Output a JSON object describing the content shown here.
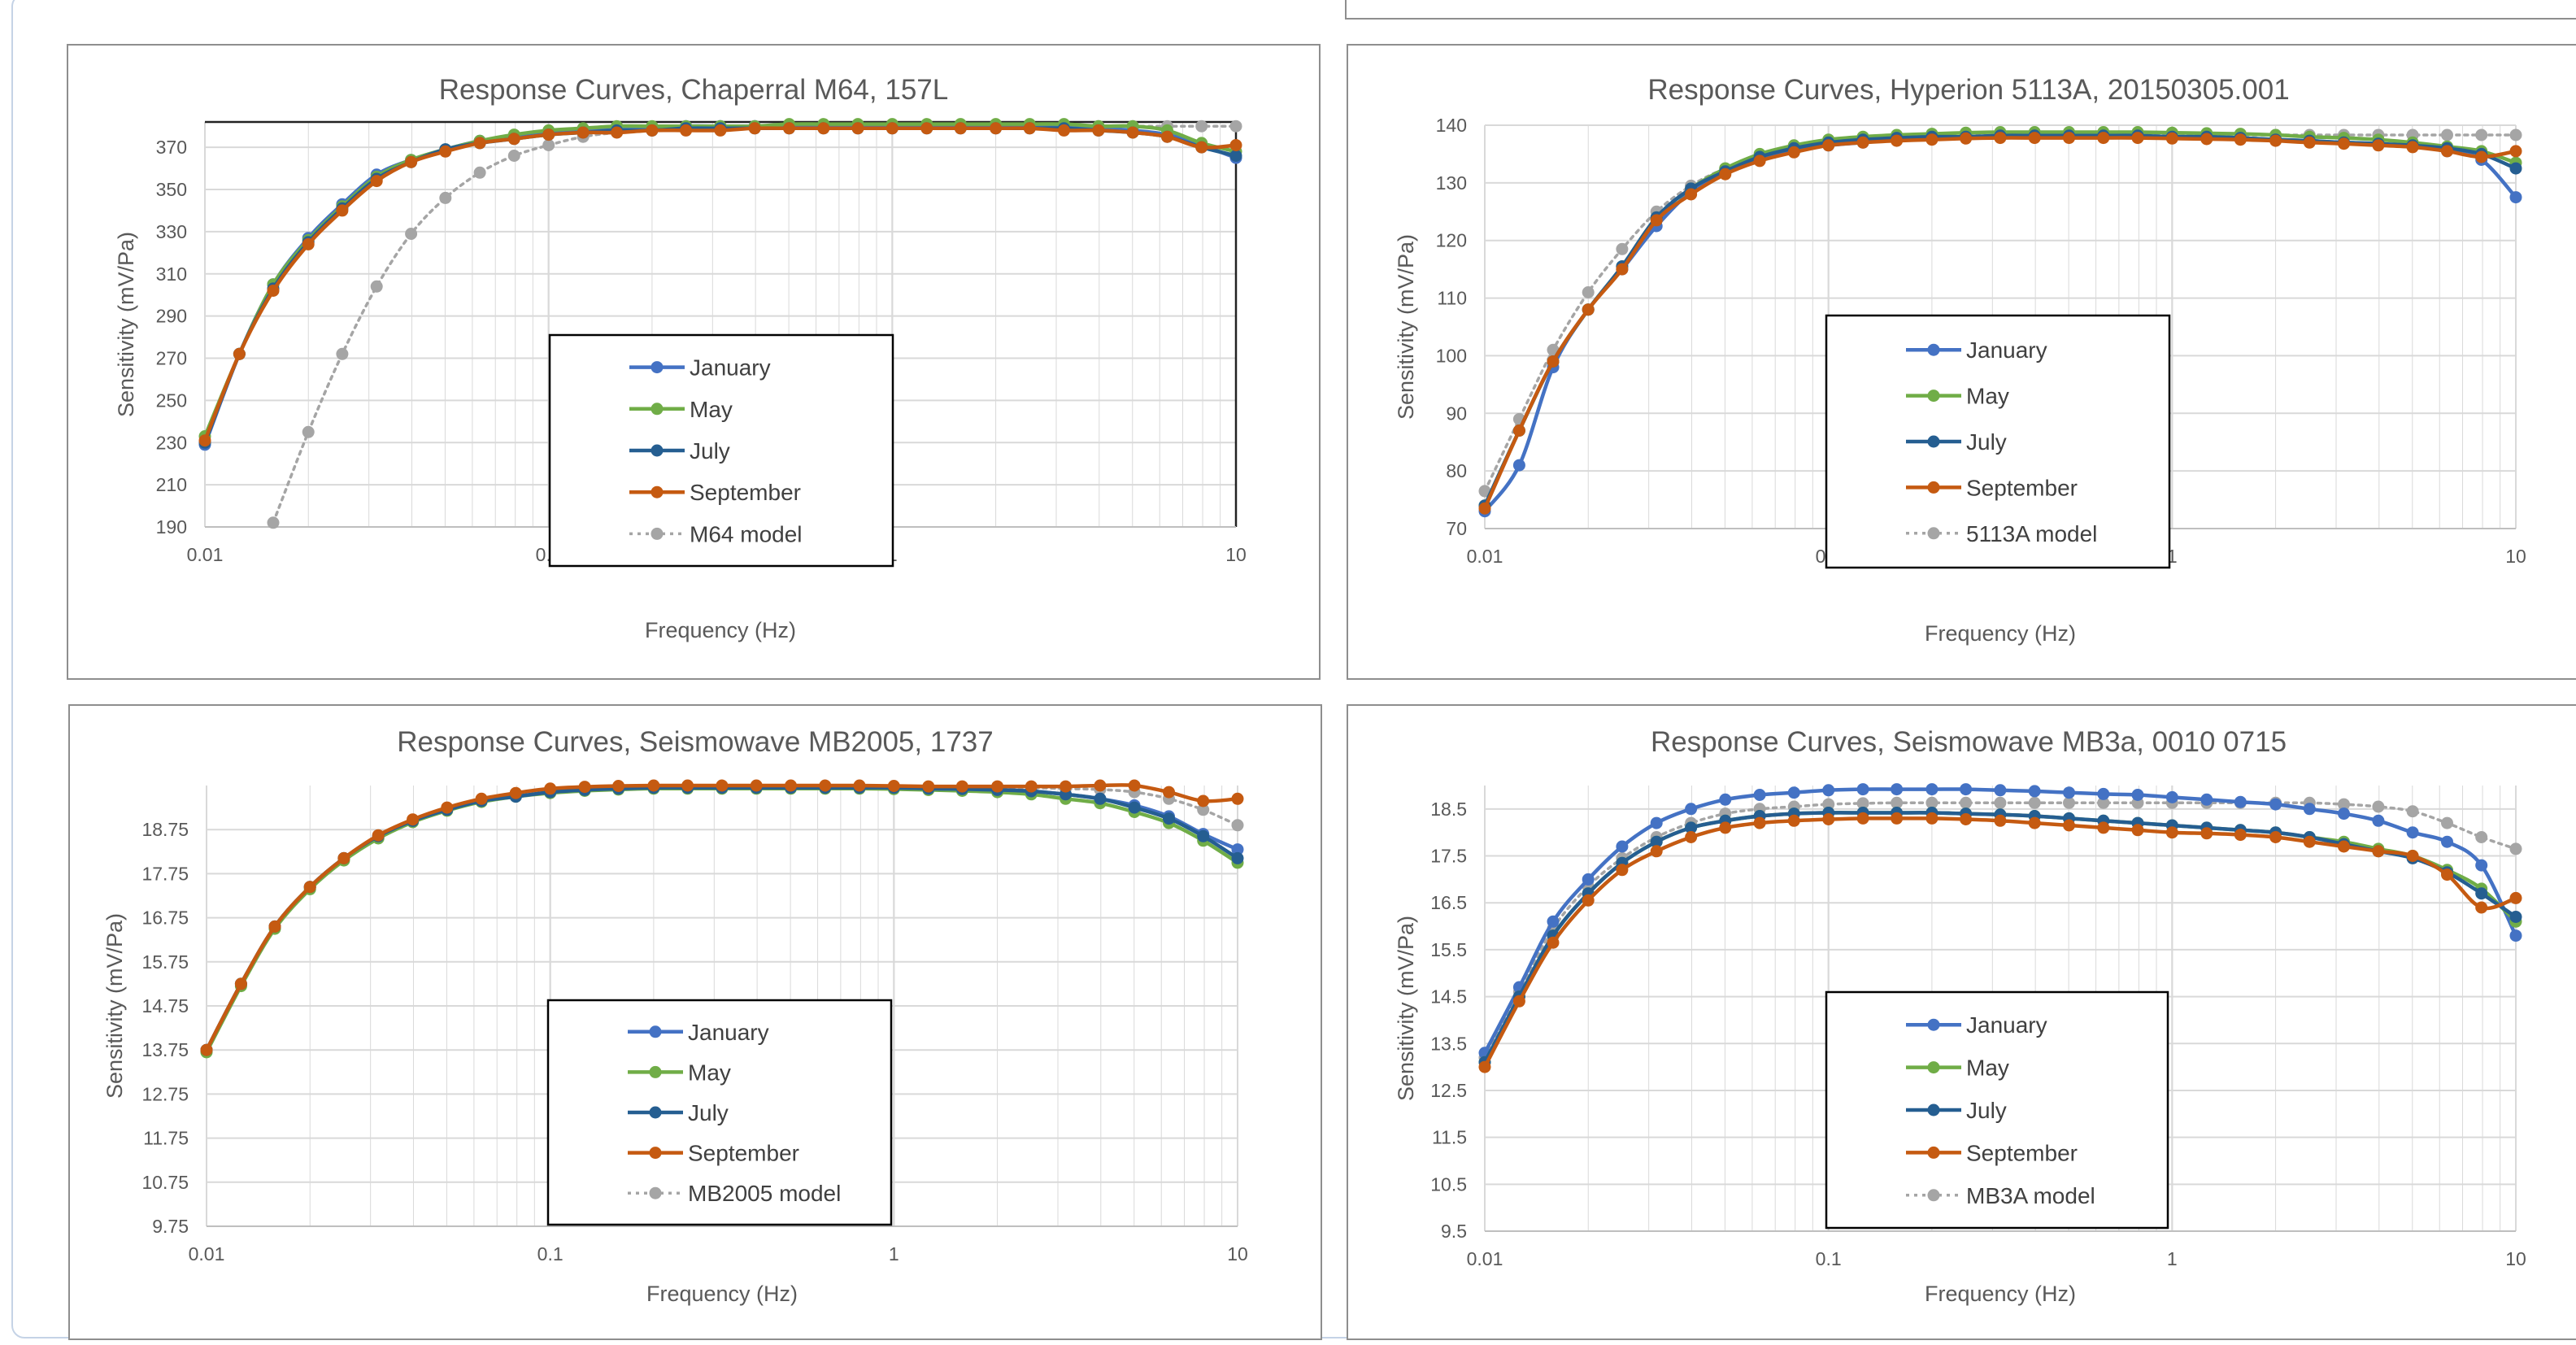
{
  "chart_data": [
    {
      "type": "line",
      "title": "Response Curves, Chaperral M64, 157L",
      "xlabel": "Frequency (Hz)",
      "ylabel": "Sensitivity (mV/Pa)",
      "x_scale": "log",
      "xlim": [
        0.01,
        10
      ],
      "ylim": [
        190,
        382
      ],
      "xticks": [
        0.01,
        0.1,
        1,
        10
      ],
      "xtick_labels": [
        "0.01",
        "0.1",
        "1",
        "10"
      ],
      "yticks": [
        190,
        210,
        230,
        250,
        270,
        290,
        310,
        330,
        350,
        370
      ],
      "ytick_labels": [
        "190",
        "210",
        "230",
        "250",
        "270",
        "290",
        "310",
        "330",
        "350",
        "370"
      ],
      "grid": true,
      "legend": "center",
      "x": [
        0.01,
        0.0126,
        0.0158,
        0.02,
        0.0251,
        0.0316,
        0.0398,
        0.0501,
        0.0631,
        0.0794,
        0.1,
        0.126,
        0.158,
        0.2,
        0.251,
        0.316,
        0.398,
        0.501,
        0.631,
        0.794,
        1,
        1.26,
        1.58,
        2,
        2.51,
        3.16,
        3.98,
        5.01,
        6.31,
        7.94,
        10
      ],
      "series": [
        {
          "name": "January",
          "values": [
            229,
            272,
            305,
            327,
            343,
            357,
            364,
            369,
            373,
            375,
            377,
            378,
            379,
            379,
            380,
            380,
            380,
            380,
            380,
            380,
            380,
            380,
            380,
            380,
            380,
            380,
            379,
            378,
            376,
            371,
            365
          ]
        },
        {
          "name": "May",
          "values": [
            233,
            272,
            305,
            326,
            342,
            356,
            364,
            369,
            373,
            376,
            378,
            379,
            380,
            380,
            380,
            380,
            380,
            381,
            381,
            381,
            381,
            381,
            381,
            381,
            381,
            381,
            380,
            380,
            378,
            372,
            368
          ]
        },
        {
          "name": "July",
          "values": [
            230,
            272,
            303,
            325,
            341,
            355,
            363,
            369,
            372,
            374,
            376,
            377,
            378,
            378,
            379,
            379,
            379,
            379,
            379,
            379,
            379,
            379,
            379,
            379,
            379,
            379,
            378,
            377,
            375,
            370,
            366
          ]
        },
        {
          "name": "September",
          "values": [
            231,
            272,
            302,
            324,
            340,
            354,
            363,
            368,
            372,
            374,
            376,
            377,
            377,
            378,
            378,
            378,
            379,
            379,
            379,
            379,
            379,
            379,
            379,
            379,
            379,
            378,
            378,
            377,
            375,
            370,
            371
          ]
        },
        {
          "name": "M64 model",
          "values": [
            null,
            null,
            192,
            235,
            272,
            304,
            329,
            346,
            358,
            366,
            371,
            375,
            377,
            378,
            379,
            380,
            380,
            380,
            380,
            380,
            380,
            380,
            380,
            380,
            380,
            380,
            380,
            380,
            380,
            380,
            380
          ]
        }
      ]
    },
    {
      "type": "line",
      "title": "Response Curves, Hyperion 5113A, 20150305.001",
      "xlabel": "Frequency (Hz)",
      "ylabel": "Sensitivity (mV/Pa)",
      "x_scale": "log",
      "xlim": [
        0.01,
        10
      ],
      "ylim": [
        70,
        140
      ],
      "xticks": [
        0.01,
        0.1,
        1,
        10
      ],
      "xtick_labels": [
        "0.01",
        "0.1",
        "1",
        "10"
      ],
      "yticks": [
        70,
        80,
        90,
        100,
        110,
        120,
        130,
        140
      ],
      "ytick_labels": [
        "70",
        "80",
        "90",
        "100",
        "110",
        "120",
        "130",
        "140"
      ],
      "grid": true,
      "legend": "center",
      "x": [
        0.01,
        0.0126,
        0.0158,
        0.02,
        0.0251,
        0.0316,
        0.0398,
        0.0501,
        0.0631,
        0.0794,
        0.1,
        0.126,
        0.158,
        0.2,
        0.251,
        0.316,
        0.398,
        0.501,
        0.631,
        0.794,
        1,
        1.26,
        1.58,
        2,
        2.51,
        3.16,
        3.98,
        5.01,
        6.31,
        7.94,
        10
      ],
      "series": [
        {
          "name": "January",
          "values": [
            73,
            81,
            98,
            108,
            115,
            122.5,
            128.5,
            132,
            134,
            135.5,
            136.5,
            137,
            137.5,
            137.8,
            138,
            138,
            138,
            138,
            138,
            138,
            138,
            138,
            137.8,
            137.5,
            137.3,
            137,
            136.8,
            136.3,
            135.5,
            134,
            127.5
          ]
        },
        {
          "name": "May",
          "values": [
            74,
            87,
            99,
            108,
            115.5,
            124,
            129,
            132.5,
            135,
            136.5,
            137.5,
            138,
            138.3,
            138.5,
            138.7,
            138.8,
            138.8,
            138.8,
            138.8,
            138.8,
            138.7,
            138.6,
            138.5,
            138.3,
            138,
            137.8,
            137.5,
            137,
            136.3,
            135.5,
            133.5
          ]
        },
        {
          "name": "July",
          "values": [
            74,
            87,
            99,
            108,
            115.5,
            124,
            129,
            132,
            134.5,
            136,
            137,
            137.5,
            137.8,
            138,
            138,
            138.2,
            138.2,
            138.2,
            138.2,
            138.2,
            138,
            138,
            137.8,
            137.5,
            137.3,
            137,
            136.8,
            136.5,
            136,
            135,
            132.5
          ]
        },
        {
          "name": "September",
          "values": [
            73.5,
            87,
            99,
            108,
            115,
            123.5,
            128,
            131.5,
            133.8,
            135.3,
            136.5,
            137,
            137.3,
            137.5,
            137.7,
            137.8,
            137.8,
            137.8,
            137.8,
            137.8,
            137.7,
            137.6,
            137.5,
            137.3,
            137,
            136.8,
            136.5,
            136.2,
            135.5,
            134.5,
            135.5
          ]
        },
        {
          "name": "5113A model",
          "values": [
            76.5,
            89,
            101,
            111,
            118.5,
            125,
            129.5,
            132.5,
            134.5,
            136,
            137,
            137.5,
            137.8,
            138,
            138.2,
            138.2,
            138.3,
            138.3,
            138.3,
            138.3,
            138.3,
            138.3,
            138.3,
            138.3,
            138.3,
            138.3,
            138.3,
            138.3,
            138.3,
            138.3,
            138.3
          ]
        }
      ]
    },
    {
      "type": "line",
      "title": "Response Curves, Seismowave MB2005, 1737",
      "xlabel": "Frequency (Hz)",
      "ylabel": "Sensitivity (mV/Pa)",
      "x_scale": "log",
      "xlim": [
        0.01,
        10
      ],
      "ylim": [
        9.75,
        19.75
      ],
      "xticks": [
        0.01,
        0.1,
        1,
        10
      ],
      "xtick_labels": [
        "0.01",
        "0.1",
        "1",
        "10"
      ],
      "yticks": [
        9.75,
        10.75,
        11.75,
        12.75,
        13.75,
        14.75,
        15.75,
        16.75,
        17.75,
        18.75
      ],
      "ytick_labels": [
        "9.75",
        "10.75",
        "11.75",
        "12.75",
        "13.75",
        "14.75",
        "15.75",
        "16.75",
        "17.75",
        "18.75"
      ],
      "grid": true,
      "legend": "center",
      "x": [
        0.01,
        0.0126,
        0.0158,
        0.02,
        0.0251,
        0.0316,
        0.0398,
        0.0501,
        0.0631,
        0.0794,
        0.1,
        0.126,
        0.158,
        0.2,
        0.251,
        0.316,
        0.398,
        0.501,
        0.631,
        0.794,
        1,
        1.26,
        1.58,
        2,
        2.51,
        3.16,
        3.98,
        5.01,
        6.31,
        7.94,
        10
      ],
      "series": [
        {
          "name": "January",
          "values": [
            13.75,
            15.25,
            16.55,
            17.45,
            18.1,
            18.6,
            18.95,
            19.2,
            19.4,
            19.5,
            19.6,
            19.65,
            19.68,
            19.7,
            19.7,
            19.7,
            19.7,
            19.7,
            19.7,
            19.7,
            19.7,
            19.68,
            19.67,
            19.65,
            19.62,
            19.55,
            19.45,
            19.3,
            19.05,
            18.65,
            18.3
          ]
        },
        {
          "name": "May",
          "values": [
            13.7,
            15.2,
            16.5,
            17.4,
            18.05,
            18.55,
            18.92,
            19.18,
            19.38,
            19.5,
            19.58,
            19.63,
            19.66,
            19.68,
            19.68,
            19.68,
            19.68,
            19.68,
            19.68,
            19.68,
            19.67,
            19.65,
            19.63,
            19.6,
            19.55,
            19.45,
            19.35,
            19.15,
            18.9,
            18.5,
            18.0
          ]
        },
        {
          "name": "July",
          "values": [
            13.75,
            15.25,
            16.55,
            17.45,
            18.1,
            18.6,
            18.95,
            19.2,
            19.4,
            19.5,
            19.6,
            19.65,
            19.68,
            19.7,
            19.7,
            19.7,
            19.7,
            19.7,
            19.7,
            19.7,
            19.7,
            19.68,
            19.67,
            19.65,
            19.62,
            19.55,
            19.45,
            19.25,
            19.0,
            18.6,
            18.1
          ]
        },
        {
          "name": "September",
          "values": [
            13.75,
            15.25,
            16.55,
            17.45,
            18.1,
            18.62,
            18.98,
            19.25,
            19.45,
            19.58,
            19.68,
            19.72,
            19.74,
            19.75,
            19.75,
            19.75,
            19.75,
            19.75,
            19.75,
            19.75,
            19.74,
            19.73,
            19.73,
            19.73,
            19.73,
            19.73,
            19.75,
            19.75,
            19.6,
            19.4,
            19.45
          ]
        },
        {
          "name": "MB2005 model",
          "values": [
            13.75,
            15.25,
            16.55,
            17.45,
            18.1,
            18.6,
            18.95,
            19.2,
            19.4,
            19.5,
            19.6,
            19.65,
            19.68,
            19.7,
            19.7,
            19.7,
            19.7,
            19.7,
            19.7,
            19.7,
            19.7,
            19.7,
            19.7,
            19.7,
            19.7,
            19.68,
            19.66,
            19.6,
            19.45,
            19.2,
            18.85
          ]
        }
      ]
    },
    {
      "type": "line",
      "title": "Response Curves, Seismowave MB3a, 0010 0715",
      "xlabel": "Frequency (Hz)",
      "ylabel": "Sensitivity (mV/Pa)",
      "x_scale": "log",
      "xlim": [
        0.01,
        10
      ],
      "ylim": [
        9.5,
        19
      ],
      "xticks": [
        0.01,
        0.1,
        1,
        10
      ],
      "xtick_labels": [
        "0.01",
        "0.1",
        "1",
        "10"
      ],
      "yticks": [
        9.5,
        10.5,
        11.5,
        12.5,
        13.5,
        14.5,
        15.5,
        16.5,
        17.5,
        18.5
      ],
      "ytick_labels": [
        "9.5",
        "10.5",
        "11.5",
        "12.5",
        "13.5",
        "14.5",
        "15.5",
        "16.5",
        "17.5",
        "18.5"
      ],
      "grid": true,
      "legend": "center",
      "x": [
        0.01,
        0.0126,
        0.0158,
        0.02,
        0.0251,
        0.0316,
        0.0398,
        0.0501,
        0.0631,
        0.0794,
        0.1,
        0.126,
        0.158,
        0.2,
        0.251,
        0.316,
        0.398,
        0.501,
        0.631,
        0.794,
        1,
        1.26,
        1.58,
        2,
        2.51,
        3.16,
        3.98,
        5.01,
        6.31,
        7.94,
        10
      ],
      "series": [
        {
          "name": "January",
          "values": [
            13.3,
            14.7,
            16.1,
            17.0,
            17.7,
            18.2,
            18.5,
            18.7,
            18.8,
            18.85,
            18.9,
            18.92,
            18.92,
            18.92,
            18.92,
            18.9,
            18.88,
            18.85,
            18.82,
            18.8,
            18.75,
            18.7,
            18.65,
            18.6,
            18.5,
            18.4,
            18.25,
            18.0,
            17.8,
            17.3,
            15.8
          ]
        },
        {
          "name": "May",
          "values": [
            13.1,
            14.5,
            15.8,
            16.7,
            17.35,
            17.8,
            18.1,
            18.25,
            18.35,
            18.4,
            18.42,
            18.42,
            18.42,
            18.42,
            18.4,
            18.38,
            18.35,
            18.3,
            18.25,
            18.2,
            18.15,
            18.1,
            18.05,
            18.0,
            17.9,
            17.8,
            17.65,
            17.5,
            17.2,
            16.8,
            16.1
          ]
        },
        {
          "name": "July",
          "values": [
            13.1,
            14.5,
            15.8,
            16.7,
            17.35,
            17.8,
            18.1,
            18.25,
            18.35,
            18.4,
            18.42,
            18.42,
            18.42,
            18.42,
            18.4,
            18.38,
            18.35,
            18.3,
            18.25,
            18.2,
            18.15,
            18.1,
            18.05,
            18.0,
            17.9,
            17.75,
            17.6,
            17.45,
            17.15,
            16.7,
            16.2
          ]
        },
        {
          "name": "September",
          "values": [
            13.0,
            14.4,
            15.65,
            16.55,
            17.2,
            17.6,
            17.9,
            18.1,
            18.2,
            18.25,
            18.28,
            18.3,
            18.3,
            18.3,
            18.28,
            18.25,
            18.2,
            18.15,
            18.1,
            18.05,
            18.0,
            17.98,
            17.95,
            17.9,
            17.8,
            17.7,
            17.6,
            17.5,
            17.1,
            16.4,
            16.6
          ]
        },
        {
          "name": "MB3A model",
          "values": [
            13.2,
            14.6,
            15.95,
            16.85,
            17.45,
            17.9,
            18.2,
            18.4,
            18.5,
            18.55,
            18.6,
            18.62,
            18.63,
            18.63,
            18.63,
            18.63,
            18.63,
            18.63,
            18.63,
            18.63,
            18.63,
            18.63,
            18.63,
            18.63,
            18.63,
            18.6,
            18.55,
            18.45,
            18.2,
            17.9,
            17.65
          ]
        }
      ]
    }
  ],
  "colors": {
    "January": "#4472c4",
    "May": "#70ad47",
    "July": "#255e91",
    "September": "#c55a11",
    "model": "#a5a5a5",
    "grid": "#d9d9d9",
    "text": "#595959"
  }
}
